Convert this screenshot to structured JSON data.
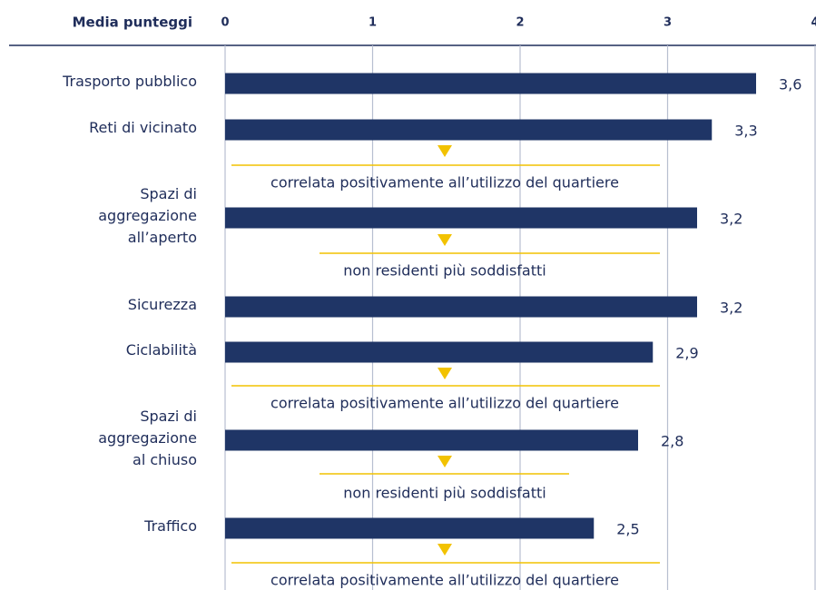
{
  "chart_data": {
    "type": "bar",
    "orientation": "horizontal",
    "title": "Media punteggi",
    "categories": [
      "Trasporto pubblico",
      "Reti di vicinato",
      "Spazi di\naggregazione\nall’aperto",
      "Sicurezza",
      "Ciclabilità",
      "Spazi di\naggregazione\nal chiuso",
      "Traffico"
    ],
    "values": [
      3.6,
      3.3,
      3.2,
      3.2,
      2.9,
      2.8,
      2.5
    ],
    "value_labels": [
      "3,6",
      "3,3",
      "3,2",
      "3,2",
      "2,9",
      "2,8",
      "2,5"
    ],
    "color": "#1f3566",
    "xlim": [
      0,
      4
    ],
    "xticks": [
      0,
      1,
      2,
      3,
      4
    ],
    "grid": true,
    "annotation_color": "#f2c200",
    "annotations": [
      "correlata positivamente all’utilizzo del quartiere",
      "non residenti più soddisfatti",
      "correlata positivamente all’utilizzo del quartiere",
      "non residenti più soddisfatti",
      "correlata positivamente all’utilizzo del quartiere"
    ]
  }
}
